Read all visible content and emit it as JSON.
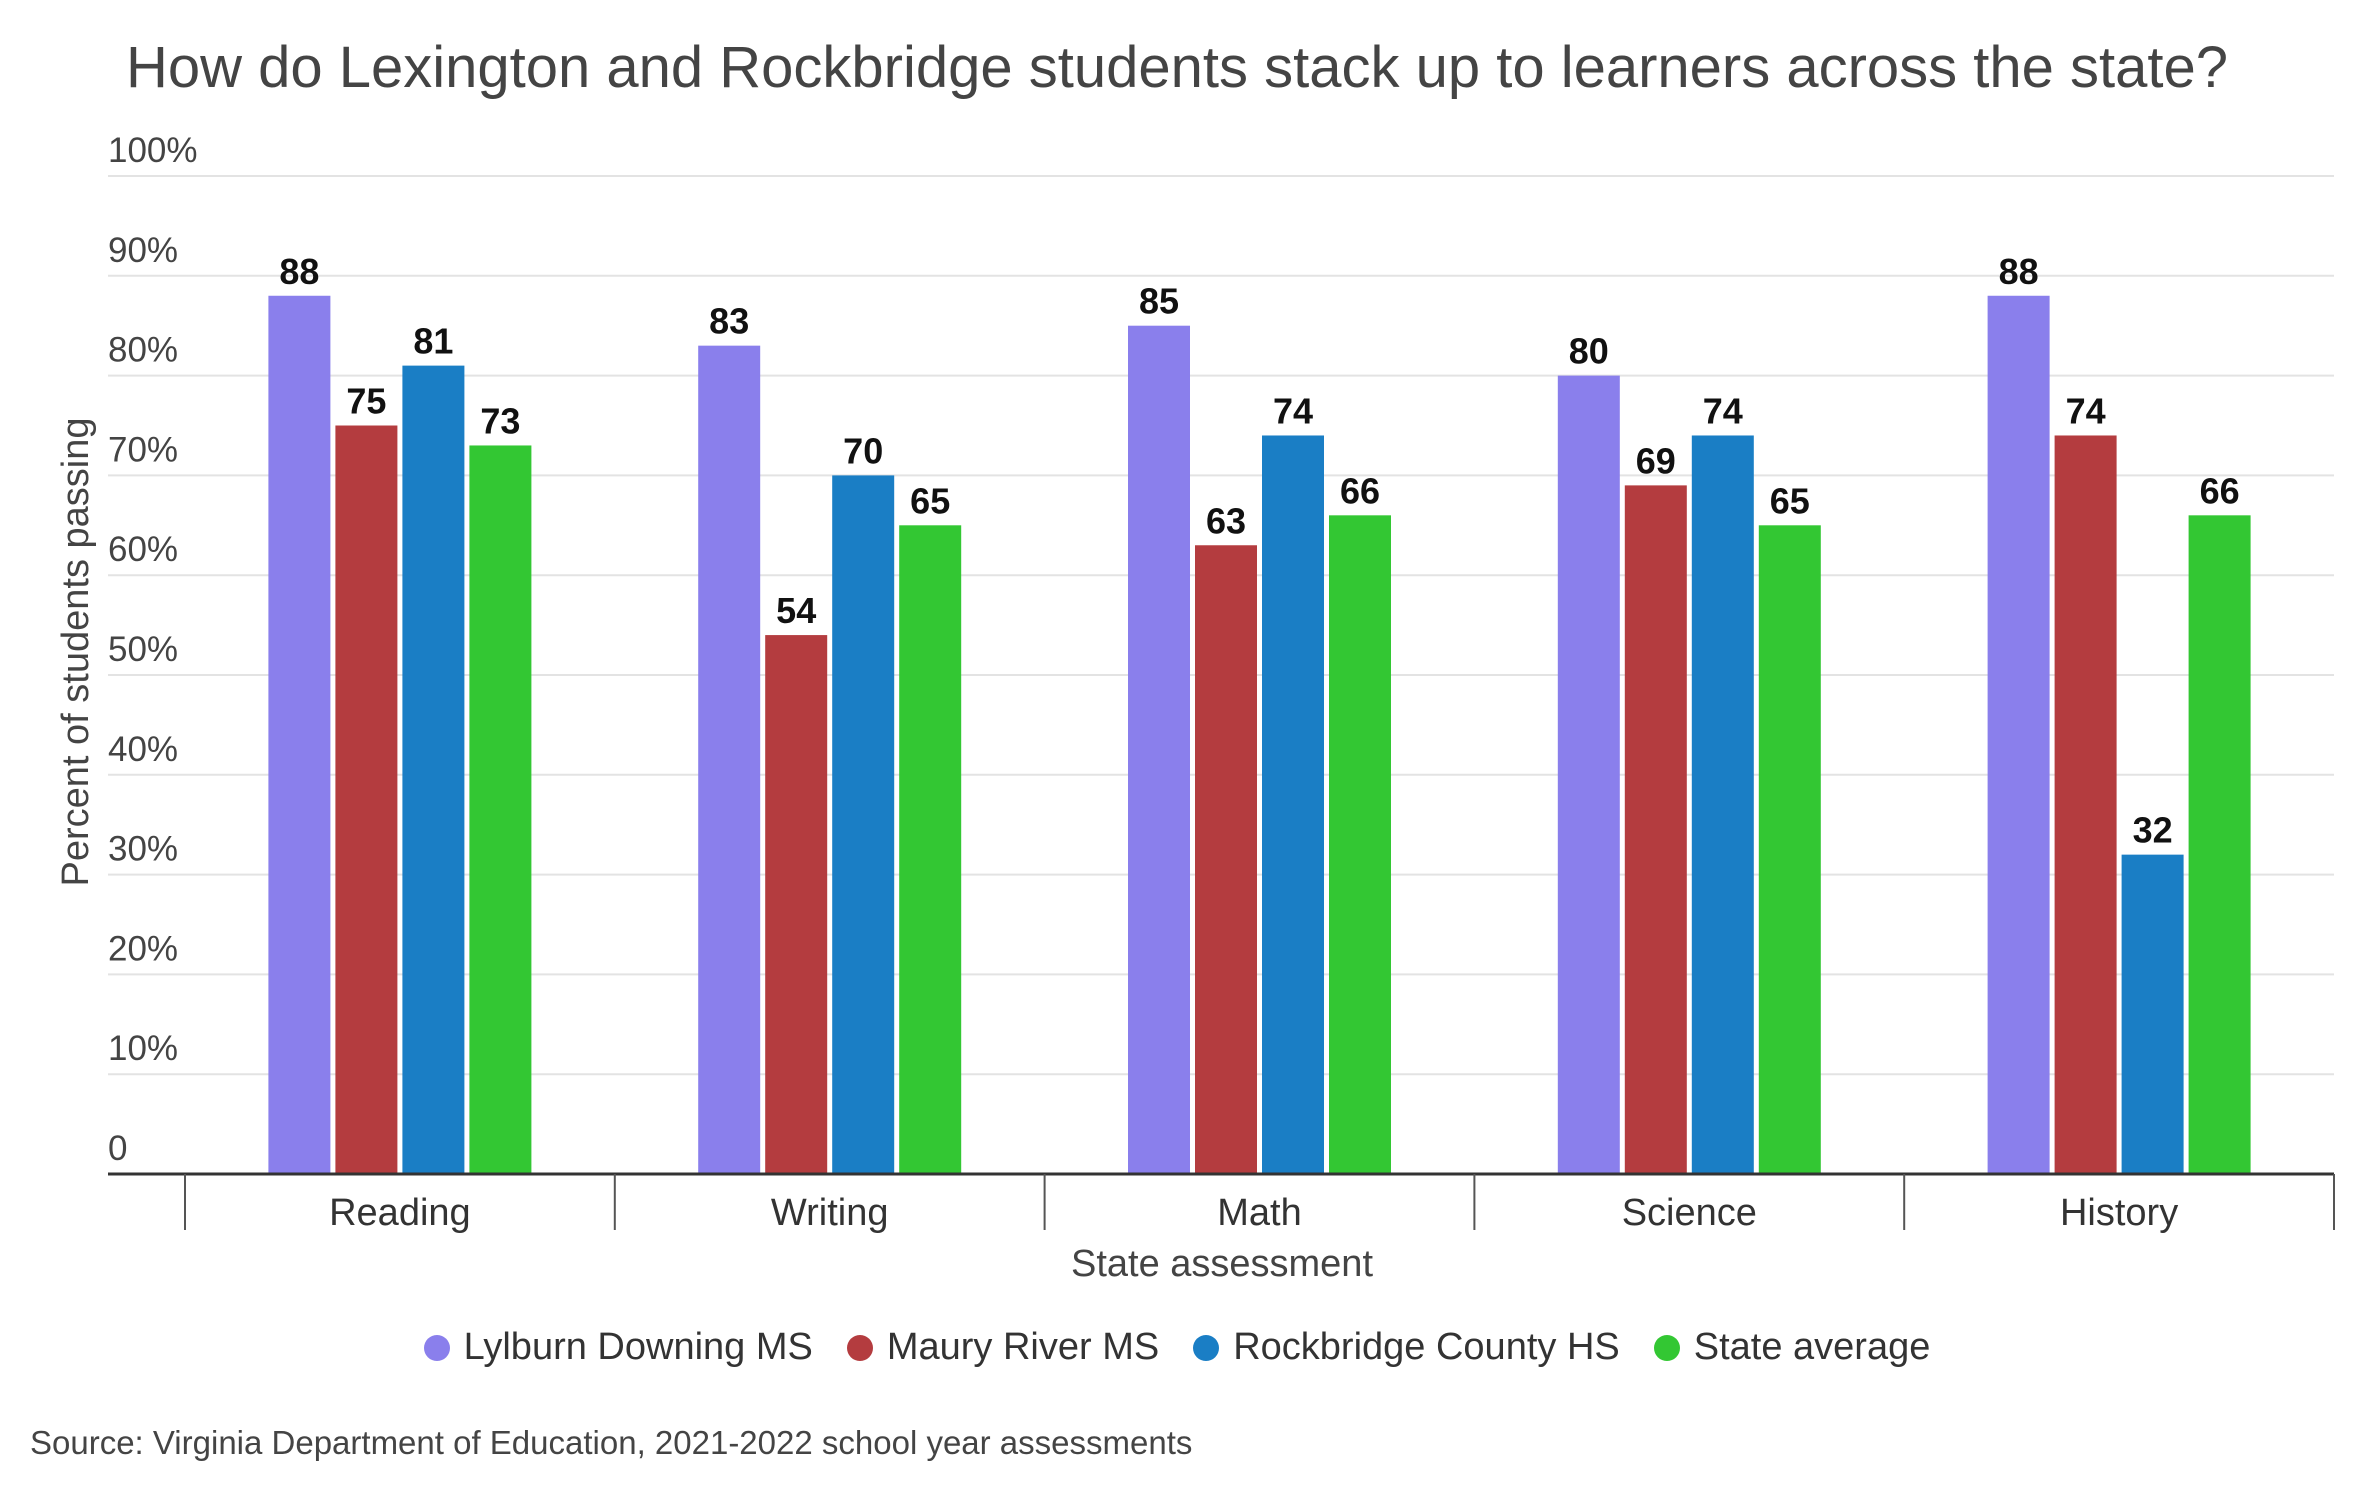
{
  "chart_data": {
    "type": "bar",
    "title": "How do Lexington and Rockbridge students stack up to learners across the state?",
    "xlabel": "State assessment",
    "ylabel": "Percent of students passing",
    "ylim": [
      0,
      100
    ],
    "y_ticks": [
      "0",
      "10%",
      "20%",
      "30%",
      "40%",
      "50%",
      "60%",
      "70%",
      "80%",
      "90%",
      "100%"
    ],
    "grid": true,
    "legend_position": "bottom",
    "categories": [
      "Reading",
      "Writing",
      "Math",
      "Science",
      "History"
    ],
    "series": [
      {
        "name": "Lylburn Downing MS",
        "color": "#8a7fec",
        "values": [
          88,
          83,
          85,
          80,
          88
        ]
      },
      {
        "name": "Maury River MS",
        "color": "#b43c3f",
        "values": [
          75,
          54,
          63,
          69,
          74
        ]
      },
      {
        "name": "Rockbridge County HS",
        "color": "#1a7ec5",
        "values": [
          81,
          70,
          74,
          74,
          32
        ]
      },
      {
        "name": "State average",
        "color": "#33c733",
        "values": [
          73,
          65,
          66,
          65,
          66
        ]
      }
    ]
  },
  "source": "Source: Virginia Department of Education, 2021-2022 school year assessments"
}
